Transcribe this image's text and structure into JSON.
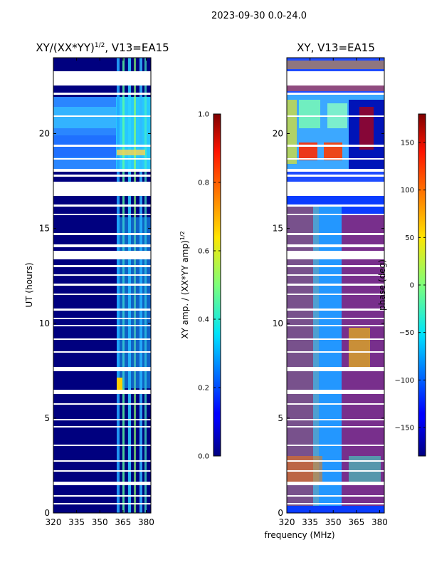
{
  "figure": {
    "suptitle": "2023-09-30 0.0-24.0",
    "xlabel": "frequency (MHz)"
  },
  "chart_data": [
    {
      "type": "heatmap",
      "title_base": "XY/(XX*YY)",
      "title_sup": "1/2",
      "title_tail": ", V13=EA15",
      "ylabel": "UT (hours)",
      "xlim": [
        320,
        383
      ],
      "ylim": [
        0,
        24
      ],
      "x_ticks": [
        320,
        335,
        350,
        365,
        380
      ],
      "y_ticks": [
        0,
        5,
        10,
        15,
        20
      ],
      "colorbar": {
        "label_base": "XY amp. / (XX*YY amp)",
        "label_sup": "1/2",
        "range": [
          0.0,
          1.0
        ],
        "ticks": [
          "0.0",
          "0.2",
          "0.4",
          "0.6",
          "0.8",
          "1.0"
        ],
        "tick_values": [
          0.0,
          0.2,
          0.4,
          0.6,
          0.8,
          1.0
        ]
      }
    },
    {
      "type": "heatmap",
      "title": "XY, V13=EA15",
      "xlim": [
        320,
        383
      ],
      "ylim": [
        0,
        24
      ],
      "x_ticks": [
        320,
        335,
        350,
        365,
        380
      ],
      "y_ticks": [
        0,
        5,
        10,
        15,
        20
      ],
      "colorbar": {
        "label": "phase (deg)",
        "range": [
          -180,
          180
        ],
        "ticks": [
          "−150",
          "−100",
          "−50",
          "0",
          "50",
          "100",
          "150"
        ],
        "tick_values": [
          -150,
          -100,
          -50,
          0,
          50,
          100,
          150
        ]
      }
    }
  ]
}
